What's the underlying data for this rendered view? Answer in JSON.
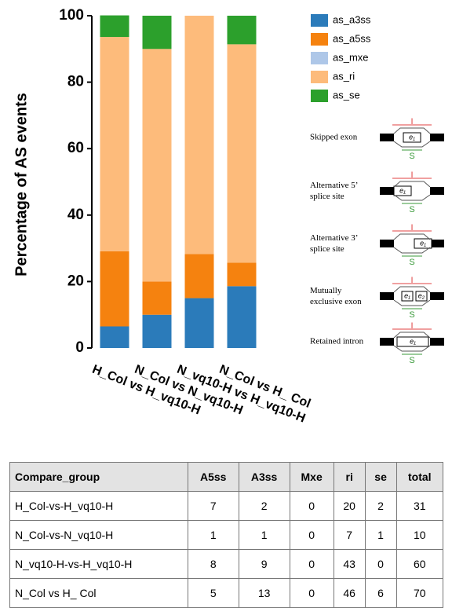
{
  "chart_data": {
    "type": "stacked_bar",
    "ylabel": "Percentage of AS events",
    "categories": [
      "H_Col vs H_vq10-H",
      "N_Col vs N_vq10-H",
      "N_vq10-H vs H_vq10-H",
      "N_Col vs H_ Col"
    ],
    "series": [
      {
        "name": "as_a3ss",
        "color": "#2b7bba",
        "values": [
          6.5,
          10,
          15,
          18.6
        ]
      },
      {
        "name": "as_a5ss",
        "color": "#f5820f",
        "values": [
          22.6,
          10,
          13.3,
          7.1
        ]
      },
      {
        "name": "as_mxe",
        "color": "#aec7e8",
        "values": [
          0,
          0,
          0,
          0
        ]
      },
      {
        "name": "as_ri",
        "color": "#fdbb7b",
        "values": [
          64.5,
          70,
          71.7,
          65.7
        ]
      },
      {
        "name": "as_se",
        "color": "#2ca02c",
        "values": [
          6.5,
          10,
          0,
          8.6
        ]
      }
    ],
    "ylim": [
      0,
      100
    ],
    "yticks": [
      0,
      20,
      40,
      60,
      80,
      100
    ],
    "legend": "right"
  },
  "diagram": {
    "events": [
      "Skipped exon",
      "Alternative 5’ splice site",
      "Alternative 3’ splice site",
      "Mutually exclusive exon",
      "Retained intron"
    ],
    "inclusion_mark": "I",
    "exclusion_mark": "S",
    "exon_1": "e₁",
    "exon_2": "e₂"
  },
  "table": {
    "header": [
      "Compare_group",
      "A5ss",
      "A3ss",
      "Mxe",
      "ri",
      "se",
      "total"
    ],
    "rows": [
      [
        "H_Col-vs-H_vq10-H",
        7,
        2,
        0,
        20,
        2,
        31
      ],
      [
        "N_Col-vs-N_vq10-H",
        1,
        1,
        0,
        7,
        1,
        10
      ],
      [
        "N_vq10-H-vs-H_vq10-H",
        8,
        9,
        0,
        43,
        0,
        60
      ],
      [
        "N_Col vs H_ Col",
        5,
        13,
        0,
        46,
        6,
        70
      ]
    ]
  }
}
